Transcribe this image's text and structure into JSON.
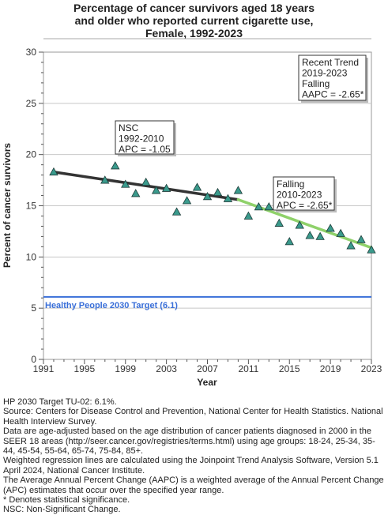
{
  "title_lines": [
    "Percentage of cancer survivors aged 18 years",
    "and older who reported current cigarette use,",
    "Female,  1992-2023"
  ],
  "chart_data": {
    "type": "scatter",
    "xlabel": "Year",
    "ylabel": "Percent of cancer survivors",
    "xlim": [
      1991,
      2023
    ],
    "ylim": [
      0,
      30
    ],
    "x_ticks": [
      1991,
      1995,
      1999,
      2003,
      2007,
      2011,
      2015,
      2019,
      2023
    ],
    "y_ticks": [
      0,
      5,
      10,
      15,
      20,
      25,
      30
    ],
    "grid": "horizontal",
    "points": {
      "x": [
        1992,
        1997,
        1998,
        1999,
        2000,
        2001,
        2002,
        2003,
        2004,
        2005,
        2006,
        2007,
        2008,
        2009,
        2010,
        2011,
        2012,
        2013,
        2014,
        2015,
        2016,
        2017,
        2018,
        2019,
        2020,
        2021,
        2022,
        2023
      ],
      "y": [
        18.3,
        17.5,
        18.9,
        17.1,
        16.2,
        17.3,
        16.5,
        16.7,
        14.4,
        15.5,
        16.8,
        15.9,
        16.3,
        15.7,
        16.5,
        14.0,
        14.9,
        14.9,
        13.3,
        11.5,
        13.1,
        12.1,
        12.0,
        12.8,
        12.3,
        11.1,
        11.7,
        10.7
      ]
    },
    "series": [
      {
        "name": "NSC",
        "x": [
          1992,
          2010
        ],
        "y": [
          18.3,
          15.6
        ],
        "color": "#333333"
      },
      {
        "name": "Falling",
        "x": [
          2010,
          2023
        ],
        "y": [
          15.6,
          10.9
        ],
        "color": "#8fd16a"
      }
    ],
    "reference_line": {
      "label": "Healthy People 2030 Target (6.1)",
      "y": 6.1,
      "color": "#3a6fd8"
    },
    "annotations": [
      {
        "id": "nsc",
        "lines": [
          "NSC",
          "1992-2010",
          "APC = -1.05"
        ]
      },
      {
        "id": "falling",
        "lines": [
          "Falling",
          "2010-2023",
          "APC = -2.65*"
        ]
      },
      {
        "id": "recent",
        "lines": [
          "Recent Trend",
          "2019-2023",
          "Falling",
          "AAPC = -2.65*"
        ]
      }
    ],
    "marker_color": "#3a9a8c"
  },
  "notes": [
    "HP 2030 Target TU-02: 6.1%.",
    "Source: Centers for Disease Control and Prevention, National Center for Health Statistics. National Health Interview Survey.",
    "Data are age-adjusted based on the age distribution of cancer patients diagnosed in 2000 in the SEER 18 areas (http://seer.cancer.gov/registries/terms.html) using age groups: 18-24, 25-34, 35-44, 45-54, 55-64, 65-74, 75-84, 85+.",
    "Weighted regression lines are calculated using the Joinpoint Trend Analysis Software, Version 5.1 April 2024, National Cancer Institute.",
    "The Average Annual Percent Change (AAPC) is a weighted average of the Annual Percent Change (APC) estimates that occur over the specified year range.",
    "* Denotes statistical significance.",
    "NSC: Non-Significant Change."
  ]
}
